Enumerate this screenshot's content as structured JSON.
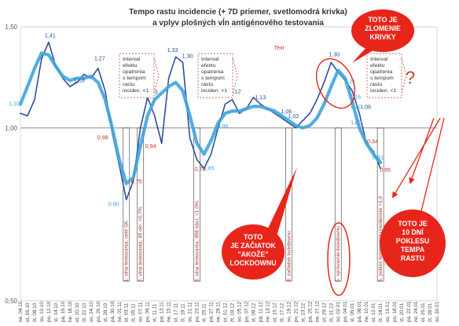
{
  "chart_data": {
    "type": "line",
    "title_lines": [
      "Tempo rastu incidencie (+ 7D priemer, svetlomodrá krivka)",
      "a vplyv plošných vĺn antigénového testovania"
    ],
    "yticks": [
      "1,50",
      "1,00",
      "0,50"
    ],
    "ylim": [
      0.5,
      1.5
    ],
    "y_scale": "log",
    "text_marker": "Text",
    "categories": [
      "ne, 04.10",
      "út, 06.10",
      "čt, 08.10",
      "so, 10.10",
      "po, 12.10",
      "st, 14.10",
      "pá, 16.10",
      "ne, 18.10",
      "út, 20.10",
      "čt, 22.10",
      "so, 24.10",
      "po, 26.10",
      "st, 28.10",
      "pá, 30.10",
      "ne, 01.11",
      "út, 03.11",
      "čt, 05.11",
      "so, 07.11",
      "po, 09.11",
      "st, 11.11",
      "pá, 13.11",
      "ne, 15.11",
      "út, 17.11",
      "čt, 19.11",
      "so, 21.11",
      "po, 23.11",
      "st, 25.11",
      "pá, 27.11",
      "ne, 29.11",
      "út, 01.12",
      "čt, 03.12",
      "so, 05.12",
      "po, 07.12",
      "st, 09.12",
      "pá, 11.12",
      "ne, 13.12",
      "út, 15.12",
      "čt, 17.12",
      "so, 19.12",
      "po, 21.12",
      "st, 23.12",
      "pá, 25.12",
      "ne, 27.12",
      "út, 29.12",
      "čt, 31.12",
      "so, 02.01",
      "po, 04.01",
      "st, 06.01",
      "pá, 08.01",
      "ne, 10.01",
      "út, 12.01",
      "čt, 14.01",
      "so, 16.01",
      "po, 18.01",
      "st, 20.01",
      "pá, 22.01",
      "ne, 24.01",
      "út, 26.01",
      "čt, 28.01",
      "so, 30.01"
    ],
    "series": [
      {
        "name": "tempo rastu incidencie",
        "color": "#2e4f9e",
        "values": [
          1.06,
          1.05,
          1.12,
          1.32,
          1.41,
          1.28,
          1.22,
          1.18,
          1.2,
          1.24,
          1.22,
          1.27,
          1.16,
          0.98,
          0.86,
          0.75,
          0.81,
          1.0,
          1.13,
          1.05,
          0.94,
          1.22,
          1.33,
          1.3,
          0.96,
          0.88,
          0.85,
          0.9,
          1.0,
          1.1,
          1.12,
          1.06,
          1.08,
          1.13,
          1.1,
          1.08,
          1.06,
          1.04,
          1.02,
          1.0,
          1.03,
          1.06,
          1.12,
          1.2,
          1.3,
          1.25,
          1.21,
          1.16,
          1.06,
          0.94,
          0.91,
          0.85,
          null,
          null,
          null,
          null,
          null,
          null,
          null,
          null
        ]
      },
      {
        "name": "7D priemer",
        "color": "#3fa4dc",
        "values": [
          1.1,
          1.18,
          1.27,
          1.35,
          1.34,
          1.28,
          1.23,
          1.21,
          1.22,
          1.22,
          1.23,
          1.2,
          1.12,
          1.0,
          0.88,
          0.8,
          0.82,
          0.93,
          1.05,
          1.12,
          1.15,
          1.18,
          1.2,
          1.16,
          1.05,
          0.94,
          0.9,
          0.95,
          1.02,
          1.06,
          1.07,
          1.07,
          1.08,
          1.09,
          1.09,
          1.08,
          1.07,
          1.05,
          1.03,
          1.01,
          1.0,
          1.01,
          1.04,
          1.1,
          1.18,
          1.26,
          1.22,
          1.11,
          1.0,
          0.94,
          0.9,
          0.87,
          null,
          null,
          null,
          null,
          null,
          null,
          null,
          null
        ]
      }
    ],
    "data_labels": [
      {
        "text": "1,10",
        "color": "#3fa4dc"
      },
      {
        "text": "1,41",
        "color": "#2e4f9e"
      },
      {
        "text": "1,18",
        "color": "#2e4f9e"
      },
      {
        "text": "1,27",
        "color": "#2e4f9e"
      },
      {
        "text": "0,98",
        "color": "#c0392b"
      },
      {
        "text": "0,80",
        "color": "#3fa4dc"
      },
      {
        "text": "0,75",
        "color": "#c0392b"
      },
      {
        "text": "1,13",
        "color": "#2e4f9e"
      },
      {
        "text": "0,94",
        "color": "#c0392b"
      },
      {
        "text": "1,33",
        "color": "#2e4f9e"
      },
      {
        "text": "1,30",
        "color": "#2e4f9e"
      },
      {
        "text": "0,85",
        "color": "#3fa4dc"
      },
      {
        "text": "0,78",
        "color": "#c0392b"
      },
      {
        "text": "0,96",
        "color": "#3fa4dc"
      },
      {
        "text": "1,12",
        "color": "#2e4f9e"
      },
      {
        "text": "1,13",
        "color": "#2e4f9e"
      },
      {
        "text": "1,06",
        "color": "#2e4f9e"
      },
      {
        "text": "1,02",
        "color": "#2e4f9e"
      },
      {
        "text": "1,30",
        "color": "#2e4f9e"
      },
      {
        "text": "1,21",
        "color": "#3fa4dc"
      },
      {
        "text": "1,16",
        "color": "#3fa4dc"
      },
      {
        "text": "1,11",
        "color": "#3fa4dc"
      },
      {
        "text": "1,06",
        "color": "#2e4f9e"
      },
      {
        "text": "1,00",
        "color": "#3fa4dc"
      },
      {
        "text": "0,94",
        "color": "#c0392b"
      },
      {
        "text": "0,91",
        "color": "#3fa4dc"
      },
      {
        "text": "0,85",
        "color": "#c0392b"
      }
    ],
    "interval_notes": [
      "Interval\nefektu\nopatrenia\ns tempom\nrastu\ninciden. <1",
      "Interval\nefektu\nopatrenia\ns tempom\nrastu\ninciden. <1",
      "Interval\nefektu\nopatrenia\ns tempom\nrastu\ninciden. <1"
    ],
    "event_labels": [
      "1. vlna testovania, celé SK",
      "2. vlna testovania, 45 okr. >0,7%",
      "3. vlna testovania, 458 obcí, >1,0%",
      "4. začiatok lockdownu",
      "5. sprísnenie lockdownu",
      "6. pokles tempa rastu incidencie <1,0"
    ],
    "callouts": [
      "TOTO JE\nZLOMENIE\nKRIVKY",
      "TOTO\nJE ZAČIATOK\n\"AKOŽE\"\nLOCKDOWNU",
      "TOTO JE\n10 DNÍ\nPOKLESU\nTEMPA\nRASTU"
    ],
    "question_mark": "?",
    "colors": {
      "raw": "#2e4f9e",
      "avg": "#3fa4dc",
      "callout": "#e8251b",
      "accent_red": "#c0392b"
    }
  }
}
